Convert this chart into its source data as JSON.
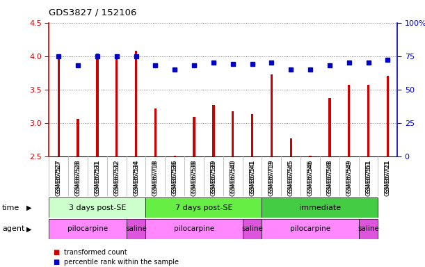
{
  "title": "GDS3827 / 152106",
  "samples": [
    "GSM367527",
    "GSM367528",
    "GSM367531",
    "GSM367532",
    "GSM367534",
    "GSM367718",
    "GSM367536",
    "GSM367538",
    "GSM367539",
    "GSM367540",
    "GSM367541",
    "GSM367719",
    "GSM367545",
    "GSM367546",
    "GSM367548",
    "GSM367549",
    "GSM367551",
    "GSM367721"
  ],
  "bar_values": [
    3.97,
    3.06,
    4.04,
    4.0,
    4.08,
    3.22,
    2.51,
    3.09,
    3.27,
    3.17,
    3.13,
    3.73,
    2.77,
    2.51,
    3.37,
    3.57,
    3.57,
    3.7
  ],
  "dot_values": [
    75,
    68,
    75,
    75,
    75,
    68,
    65,
    68,
    70,
    69,
    69,
    70,
    65,
    65,
    68,
    70,
    70,
    72
  ],
  "ylim_left": [
    2.5,
    4.5
  ],
  "ylim_right": [
    0,
    100
  ],
  "yticks_left": [
    2.5,
    3.0,
    3.5,
    4.0,
    4.5
  ],
  "yticks_right": [
    0,
    25,
    50,
    75,
    100
  ],
  "bar_color": "#cc0000",
  "dot_color": "#0000cc",
  "bar_width": 0.12,
  "time_groups": [
    {
      "label": "3 days post-SE",
      "start": 0,
      "end": 5,
      "color": "#ccffcc"
    },
    {
      "label": "7 days post-SE",
      "start": 5,
      "end": 11,
      "color": "#66ee44"
    },
    {
      "label": "immediate",
      "start": 11,
      "end": 17,
      "color": "#44cc44"
    }
  ],
  "agent_groups": [
    {
      "label": "pilocarpine",
      "start": 0,
      "end": 4,
      "color": "#ff88ff"
    },
    {
      "label": "saline",
      "start": 4,
      "end": 5,
      "color": "#dd55dd"
    },
    {
      "label": "pilocarpine",
      "start": 5,
      "end": 10,
      "color": "#ff88ff"
    },
    {
      "label": "saline",
      "start": 10,
      "end": 11,
      "color": "#dd55dd"
    },
    {
      "label": "pilocarpine",
      "start": 11,
      "end": 16,
      "color": "#ff88ff"
    },
    {
      "label": "saline",
      "start": 16,
      "end": 17,
      "color": "#dd55dd"
    }
  ],
  "time_label": "time",
  "agent_label": "agent",
  "legend_bar": "transformed count",
  "legend_dot": "percentile rank within the sample",
  "bg_color": "#ffffff",
  "grid_color": "#888888",
  "tick_color_left": "#cc0000",
  "tick_color_right": "#0000cc",
  "grid_ticks": [
    3.0,
    3.5,
    4.0,
    4.5
  ]
}
